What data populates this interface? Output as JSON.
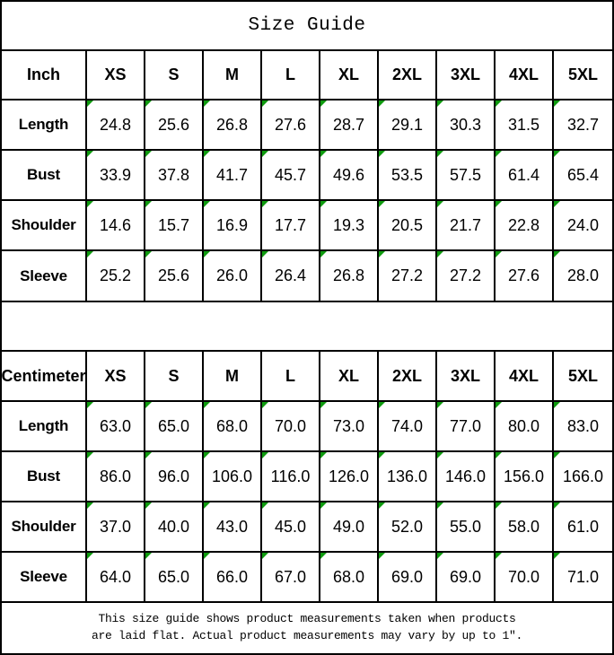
{
  "title": "Size Guide",
  "colors": {
    "grid_line": "#000000",
    "background": "#ffffff",
    "text": "#000000",
    "marker_green": "#0f9b0f"
  },
  "tables": [
    {
      "unit": "Inch",
      "header": [
        "Inch",
        "XS",
        "S",
        "M",
        "L",
        "XL",
        "2XL",
        "3XL",
        "4XL",
        "5XL"
      ],
      "rows": [
        {
          "label": "Length",
          "values": [
            "24.8",
            "25.6",
            "26.8",
            "27.6",
            "28.7",
            "29.1",
            "30.3",
            "31.5",
            "32.7"
          ]
        },
        {
          "label": "Bust",
          "values": [
            "33.9",
            "37.8",
            "41.7",
            "45.7",
            "49.6",
            "53.5",
            "57.5",
            "61.4",
            "65.4"
          ]
        },
        {
          "label": "Shoulder",
          "values": [
            "14.6",
            "15.7",
            "16.9",
            "17.7",
            "19.3",
            "20.5",
            "21.7",
            "22.8",
            "24.0"
          ]
        },
        {
          "label": "Sleeve",
          "values": [
            "25.2",
            "25.6",
            "26.0",
            "26.4",
            "26.8",
            "27.2",
            "27.2",
            "27.6",
            "28.0"
          ]
        }
      ]
    },
    {
      "unit": "Centimeter",
      "header": [
        "Centimeter",
        "XS",
        "S",
        "M",
        "L",
        "XL",
        "2XL",
        "3XL",
        "4XL",
        "5XL"
      ],
      "rows": [
        {
          "label": "Length",
          "values": [
            "63.0",
            "65.0",
            "68.0",
            "70.0",
            "73.0",
            "74.0",
            "77.0",
            "80.0",
            "83.0"
          ]
        },
        {
          "label": "Bust",
          "values": [
            "86.0",
            "96.0",
            "106.0",
            "116.0",
            "126.0",
            "136.0",
            "146.0",
            "156.0",
            "166.0"
          ]
        },
        {
          "label": "Shoulder",
          "values": [
            "37.0",
            "40.0",
            "43.0",
            "45.0",
            "49.0",
            "52.0",
            "55.0",
            "58.0",
            "61.0"
          ]
        },
        {
          "label": "Sleeve",
          "values": [
            "64.0",
            "65.0",
            "66.0",
            "67.0",
            "68.0",
            "69.0",
            "69.0",
            "70.0",
            "71.0"
          ]
        }
      ]
    }
  ],
  "footer": {
    "line1": "This size guide shows product measurements taken when products",
    "line2": "are laid flat. Actual product measurements may vary by up to 1″."
  }
}
